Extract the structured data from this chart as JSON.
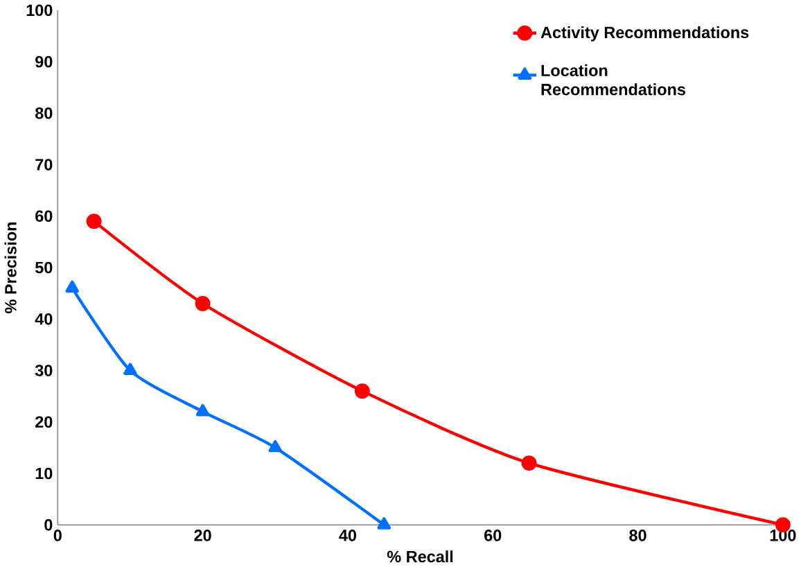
{
  "chart_data": {
    "type": "line",
    "xlabel": "% Recall",
    "ylabel": "% Precision",
    "xlim": [
      0,
      100
    ],
    "ylim": [
      0,
      100
    ],
    "xticks": [
      0,
      20,
      40,
      60,
      80,
      100
    ],
    "yticks": [
      0,
      10,
      20,
      30,
      40,
      50,
      60,
      70,
      80,
      90,
      100
    ],
    "grid": false,
    "legend": "top right",
    "series": [
      {
        "name": "Activity Recommendations",
        "color": "#ff0000",
        "marker": "circle",
        "x": [
          5,
          20,
          42,
          65,
          100
        ],
        "values": [
          59,
          43,
          26,
          12,
          0
        ]
      },
      {
        "name": "Location Recommendations",
        "color": "#0070ff",
        "marker": "triangle",
        "x": [
          2,
          10,
          20,
          30,
          45
        ],
        "values": [
          46,
          30,
          22,
          15,
          0
        ]
      }
    ]
  }
}
